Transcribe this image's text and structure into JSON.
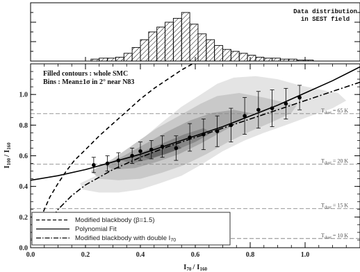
{
  "chart_data": [
    {
      "type": "bar",
      "panel": "histogram",
      "title": "Data distribution",
      "subtitle": "in SEST field",
      "bin_edges": [
        0.22,
        0.25,
        0.28,
        0.31,
        0.34,
        0.37,
        0.4,
        0.43,
        0.46,
        0.49,
        0.52,
        0.55,
        0.58,
        0.61,
        0.64,
        0.67,
        0.7,
        0.73,
        0.76,
        0.79,
        0.82,
        0.85,
        0.88,
        0.91,
        0.94,
        0.97,
        1.0,
        1.03
      ],
      "values": [
        2,
        3,
        3,
        4,
        8,
        14,
        22,
        30,
        35,
        40,
        44,
        50,
        38,
        28,
        22,
        16,
        12,
        10,
        8,
        6,
        4,
        3,
        3,
        2,
        2,
        1,
        1
      ],
      "ymax": 60,
      "fill": "hatched"
    },
    {
      "type": "scatter",
      "panel": "main",
      "annotations": [
        "Filled contours : whole SMC",
        "Bins : Mean±1σ in 2° near N83"
      ],
      "xlabel_main": "I",
      "xlabel_sub": "70",
      "xlabel_sep": "/ I",
      "xlabel_sub2": "160",
      "ylabel_main": "I",
      "ylabel_sub": "100",
      "ylabel_sep": "/ I",
      "ylabel_sub2": "160",
      "xlim": [
        0,
        1.2
      ],
      "ylim": [
        0,
        1.2
      ],
      "xticks": [
        0.0,
        0.2,
        0.4,
        0.6,
        0.8,
        1.0
      ],
      "xtick_labels": [
        "0.0",
        "0.2",
        "0.4",
        "0.6",
        "0.8",
        "1.0"
      ],
      "yticks": [
        0.0,
        0.2,
        0.4,
        0.6,
        0.8,
        1.0
      ],
      "ytick_labels": [
        "0.0",
        "0.2",
        "0.4",
        "0.6",
        "0.8",
        "1.0"
      ],
      "contours": [
        {
          "level": 1,
          "color": "#e4e4e4",
          "points": [
            [
              0.18,
              0.42
            ],
            [
              0.25,
              0.48
            ],
            [
              0.32,
              0.58
            ],
            [
              0.4,
              0.7
            ],
            [
              0.48,
              0.82
            ],
            [
              0.55,
              0.92
            ],
            [
              0.62,
              1.0
            ],
            [
              0.68,
              1.07
            ],
            [
              0.74,
              1.11
            ],
            [
              0.82,
              1.12
            ],
            [
              0.9,
              1.1
            ],
            [
              0.98,
              1.06
            ],
            [
              1.06,
              1.03
            ],
            [
              1.12,
              1.01
            ],
            [
              1.15,
              0.96
            ],
            [
              1.1,
              0.91
            ],
            [
              1.02,
              0.86
            ],
            [
              0.93,
              0.8
            ],
            [
              0.85,
              0.75
            ],
            [
              0.78,
              0.7
            ],
            [
              0.7,
              0.63
            ],
            [
              0.62,
              0.54
            ],
            [
              0.55,
              0.47
            ],
            [
              0.47,
              0.42
            ],
            [
              0.4,
              0.38
            ],
            [
              0.32,
              0.36
            ],
            [
              0.25,
              0.36
            ],
            [
              0.19,
              0.38
            ]
          ]
        },
        {
          "level": 2,
          "color": "#c9c9c9",
          "points": [
            [
              0.22,
              0.5
            ],
            [
              0.3,
              0.58
            ],
            [
              0.38,
              0.68
            ],
            [
              0.46,
              0.78
            ],
            [
              0.54,
              0.86
            ],
            [
              0.62,
              0.94
            ],
            [
              0.68,
              0.99
            ],
            [
              0.76,
              1.01
            ],
            [
              0.85,
              0.98
            ],
            [
              0.92,
              0.95
            ],
            [
              0.97,
              0.93
            ],
            [
              0.95,
              0.88
            ],
            [
              0.88,
              0.82
            ],
            [
              0.8,
              0.76
            ],
            [
              0.72,
              0.69
            ],
            [
              0.64,
              0.61
            ],
            [
              0.56,
              0.54
            ],
            [
              0.48,
              0.49
            ],
            [
              0.4,
              0.45
            ],
            [
              0.32,
              0.44
            ],
            [
              0.25,
              0.45
            ]
          ]
        },
        {
          "level": 3,
          "color": "#a8a8a8",
          "points": [
            [
              0.27,
              0.54
            ],
            [
              0.34,
              0.6
            ],
            [
              0.42,
              0.68
            ],
            [
              0.5,
              0.76
            ],
            [
              0.58,
              0.83
            ],
            [
              0.66,
              0.88
            ],
            [
              0.74,
              0.9
            ],
            [
              0.8,
              0.88
            ],
            [
              0.76,
              0.82
            ],
            [
              0.7,
              0.76
            ],
            [
              0.62,
              0.68
            ],
            [
              0.54,
              0.61
            ],
            [
              0.46,
              0.56
            ],
            [
              0.38,
              0.52
            ],
            [
              0.3,
              0.51
            ]
          ]
        },
        {
          "level": 4,
          "color": "#878787",
          "points": [
            [
              0.33,
              0.57
            ],
            [
              0.4,
              0.62
            ],
            [
              0.48,
              0.68
            ],
            [
              0.56,
              0.74
            ],
            [
              0.63,
              0.78
            ],
            [
              0.66,
              0.75
            ],
            [
              0.6,
              0.69
            ],
            [
              0.52,
              0.63
            ],
            [
              0.44,
              0.58
            ],
            [
              0.37,
              0.55
            ]
          ]
        },
        {
          "level": 5,
          "color": "#6a6a6a",
          "points": [
            [
              0.4,
              0.6
            ],
            [
              0.47,
              0.64
            ],
            [
              0.53,
              0.68
            ],
            [
              0.55,
              0.65
            ],
            [
              0.49,
              0.61
            ],
            [
              0.43,
              0.58
            ]
          ]
        }
      ],
      "series": [
        {
          "name": "Modified blackbody (β=1.5)",
          "kind": "dashed",
          "x": [
            0.01,
            0.03,
            0.05,
            0.07,
            0.1,
            0.13,
            0.16,
            0.2,
            0.25,
            0.3,
            0.35,
            0.4,
            0.45,
            0.5,
            0.55,
            0.6
          ],
          "y": [
            0.02,
            0.16,
            0.25,
            0.33,
            0.42,
            0.5,
            0.57,
            0.64,
            0.73,
            0.81,
            0.89,
            0.97,
            1.04,
            1.1,
            1.16,
            1.21
          ]
        },
        {
          "name": "Polynomial Fit",
          "kind": "solid",
          "x": [
            0.0,
            0.1,
            0.2,
            0.3,
            0.4,
            0.5,
            0.6,
            0.7,
            0.8,
            0.9,
            1.0,
            1.1,
            1.2
          ],
          "y": [
            0.44,
            0.47,
            0.51,
            0.56,
            0.61,
            0.67,
            0.73,
            0.79,
            0.86,
            0.93,
            1.01,
            1.09,
            1.18
          ]
        },
        {
          "name": "Modified blackbody with double I",
          "name_sub": "70",
          "kind": "dashdot",
          "x": [
            0.02,
            0.05,
            0.1,
            0.15,
            0.2,
            0.3,
            0.4,
            0.5,
            0.6,
            0.7,
            0.8,
            0.9,
            1.0,
            1.1,
            1.2
          ],
          "y": [
            0.02,
            0.12,
            0.25,
            0.34,
            0.41,
            0.51,
            0.59,
            0.66,
            0.72,
            0.78,
            0.84,
            0.9,
            0.96,
            1.02,
            1.08
          ]
        },
        {
          "name": "Bins",
          "kind": "points",
          "x": [
            0.23,
            0.28,
            0.32,
            0.37,
            0.4,
            0.44,
            0.48,
            0.53,
            0.58,
            0.63,
            0.68,
            0.73,
            0.78,
            0.83,
            0.88,
            0.93,
            0.98
          ],
          "y": [
            0.54,
            0.55,
            0.57,
            0.6,
            0.63,
            0.64,
            0.66,
            0.65,
            0.72,
            0.74,
            0.76,
            0.8,
            0.86,
            0.9,
            0.91,
            0.94,
            0.98
          ],
          "err": [
            0.05,
            0.05,
            0.05,
            0.05,
            0.06,
            0.06,
            0.07,
            0.08,
            0.09,
            0.1,
            0.1,
            0.11,
            0.12,
            0.12,
            0.12,
            0.1,
            0.08
          ]
        }
      ],
      "temperature_lines": [
        {
          "y": 0.875,
          "label": "T",
          "sub": "dust",
          "value": "= 65 K"
        },
        {
          "y": 0.545,
          "label": "T",
          "sub": "dust",
          "value": "= 20 K"
        },
        {
          "y": 0.255,
          "label": "T",
          "sub": "dust",
          "value": "= 15 K"
        },
        {
          "y": 0.06,
          "label": "T",
          "sub": "dust",
          "value": "= 10 K"
        }
      ],
      "legend": {
        "placement": "bottom-left",
        "entries": [
          {
            "label": "Modified blackbody (β=1.5)",
            "style": "dashed"
          },
          {
            "label": "Polynomial Fit",
            "style": "solid"
          },
          {
            "label": "Modified blackbody with double I",
            "sub": "70",
            "style": "dashdot"
          }
        ]
      },
      "grid": false
    }
  ]
}
